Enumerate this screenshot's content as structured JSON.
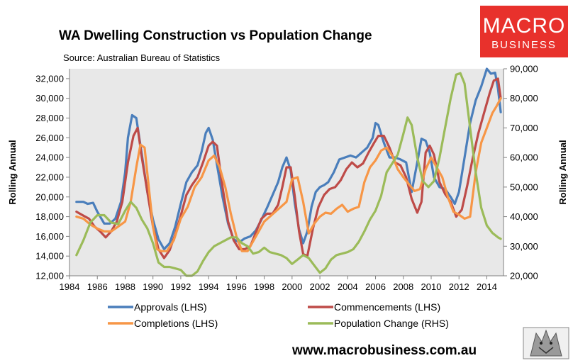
{
  "logo": {
    "line1": "MACRO",
    "line2": "BUSINESS",
    "color": "#e8312c"
  },
  "footer": {
    "url": "www.macrobusiness.com.au"
  },
  "chart_data": {
    "type": "line",
    "title": "WA Dwelling Construction vs Population Change",
    "subtitle": "Source: Australian Bureau of Statistics",
    "ylabel": "Rolling Annual",
    "y2label": "Rolling Annual",
    "xlim": [
      1984,
      2015.2
    ],
    "ylim": [
      12000,
      33000
    ],
    "y2lim": [
      20000,
      90000
    ],
    "x_ticks": [
      1984,
      1986,
      1988,
      1990,
      1992,
      1994,
      1996,
      1998,
      2000,
      2002,
      2004,
      2006,
      2008,
      2010,
      2012,
      2014
    ],
    "x_tick_labels": [
      "1984",
      "1986",
      "1988",
      "1990",
      "1992",
      "1994",
      "1996",
      "1998",
      "2000",
      "2002",
      "2004",
      "2006",
      "2008",
      "2010",
      "2012",
      "2014"
    ],
    "y_ticks": [
      12000,
      14000,
      16000,
      18000,
      20000,
      22000,
      24000,
      26000,
      28000,
      30000,
      32000
    ],
    "y_tick_labels": [
      "12,000",
      "14,000",
      "16,000",
      "18,000",
      "20,000",
      "22,000",
      "24,000",
      "26,000",
      "28,000",
      "30,000",
      "32,000"
    ],
    "y2_ticks": [
      20000,
      30000,
      40000,
      50000,
      60000,
      70000,
      80000,
      90000
    ],
    "y2_tick_labels": [
      "20,000",
      "30,000",
      "40,000",
      "50,000",
      "60,000",
      "70,000",
      "80,000",
      "90,000"
    ],
    "grid": false,
    "legend": "bottom",
    "series": [
      {
        "name": "Approvals (LHS)",
        "axis": "left",
        "color": "#4a7ebb",
        "x": [
          1984.5,
          1985.0,
          1985.3,
          1985.7,
          1986.0,
          1986.5,
          1986.9,
          1987.3,
          1987.7,
          1988.0,
          1988.2,
          1988.5,
          1988.8,
          1989.2,
          1989.6,
          1990.0,
          1990.4,
          1990.8,
          1991.2,
          1991.6,
          1992.0,
          1992.4,
          1992.8,
          1993.2,
          1993.5,
          1993.8,
          1994.0,
          1994.3,
          1994.6,
          1995.0,
          1995.4,
          1995.8,
          1996.2,
          1996.6,
          1997.0,
          1997.4,
          1997.8,
          1998.2,
          1998.6,
          1999.0,
          1999.3,
          1999.6,
          1999.9,
          2000.2,
          2000.5,
          2000.8,
          2001.1,
          2001.4,
          2001.7,
          2002.0,
          2002.3,
          2002.6,
          2003.0,
          2003.4,
          2003.8,
          2004.2,
          2004.6,
          2005.0,
          2005.4,
          2005.8,
          2006.0,
          2006.2,
          2006.6,
          2007.0,
          2007.4,
          2007.8,
          2008.2,
          2008.6,
          2009.0,
          2009.3,
          2009.6,
          2009.9,
          2010.2,
          2010.6,
          2011.0,
          2011.4,
          2011.7,
          2012.0,
          2012.4,
          2012.8,
          2013.2,
          2013.6,
          2014.0,
          2014.3,
          2014.6,
          2014.8,
          2015.0
        ],
        "values": [
          19500,
          19500,
          19300,
          19400,
          18500,
          17300,
          17300,
          17800,
          19500,
          22500,
          26000,
          28300,
          28000,
          24300,
          20500,
          17700,
          15700,
          14700,
          15300,
          17000,
          19300,
          21500,
          22500,
          23200,
          24600,
          26500,
          27000,
          25800,
          23300,
          20000,
          17300,
          15700,
          15400,
          15800,
          16000,
          16600,
          17700,
          18900,
          20200,
          21500,
          23000,
          24000,
          22700,
          19300,
          16700,
          15300,
          16500,
          19000,
          20500,
          21000,
          21200,
          21500,
          22500,
          23800,
          24000,
          24200,
          24000,
          24500,
          25000,
          26000,
          27500,
          27300,
          25500,
          24000,
          24000,
          23800,
          23500,
          20500,
          23500,
          25900,
          25700,
          24500,
          22000,
          21000,
          20800,
          20000,
          19300,
          20500,
          24000,
          27500,
          29800,
          31200,
          33000,
          32500,
          32600,
          31000,
          28600
        ]
      },
      {
        "name": "Commencements (LHS)",
        "axis": "left",
        "color": "#be4b48",
        "x": [
          1984.5,
          1985.0,
          1985.4,
          1985.8,
          1986.2,
          1986.6,
          1987.0,
          1987.4,
          1987.8,
          1988.2,
          1988.6,
          1988.9,
          1989.2,
          1989.6,
          1990.0,
          1990.4,
          1990.8,
          1991.2,
          1991.6,
          1992.0,
          1992.4,
          1992.8,
          1993.2,
          1993.6,
          1994.0,
          1994.3,
          1994.6,
          1995.0,
          1995.4,
          1995.8,
          1996.2,
          1996.6,
          1997.0,
          1997.4,
          1997.8,
          1998.2,
          1998.6,
          1999.0,
          1999.3,
          1999.6,
          1999.9,
          2000.2,
          2000.5,
          2000.8,
          2001.1,
          2001.5,
          2001.9,
          2002.3,
          2002.7,
          2003.1,
          2003.5,
          2003.9,
          2004.3,
          2004.7,
          2005.1,
          2005.5,
          2005.9,
          2006.2,
          2006.6,
          2007.0,
          2007.4,
          2007.8,
          2008.2,
          2008.6,
          2009.0,
          2009.3,
          2009.6,
          2009.9,
          2010.2,
          2010.6,
          2011.0,
          2011.4,
          2011.8,
          2012.2,
          2012.6,
          2013.0,
          2013.4,
          2013.8,
          2014.2,
          2014.5,
          2014.8,
          2015.0
        ],
        "values": [
          18500,
          18100,
          17800,
          17000,
          16500,
          15900,
          16500,
          17500,
          19500,
          23500,
          26200,
          27000,
          24000,
          20500,
          17000,
          14700,
          13800,
          14600,
          16200,
          18100,
          20200,
          21200,
          22000,
          23500,
          25200,
          25600,
          25200,
          21000,
          17500,
          15600,
          14700,
          14700,
          15000,
          16400,
          17800,
          18300,
          18300,
          19200,
          21000,
          23000,
          23000,
          20000,
          16500,
          14200,
          14000,
          16800,
          19000,
          20200,
          20800,
          21000,
          21700,
          22800,
          23500,
          23000,
          23400,
          24500,
          25500,
          26200,
          26200,
          25000,
          23500,
          23200,
          22000,
          19800,
          18400,
          19500,
          24500,
          25200,
          24300,
          21500,
          20300,
          19500,
          18000,
          18700,
          21200,
          24000,
          26500,
          28500,
          30500,
          31800,
          32000,
          30000
        ]
      },
      {
        "name": "Completions (LHS)",
        "axis": "left",
        "color": "#f79646",
        "x": [
          1984.5,
          1985.0,
          1985.5,
          1986.0,
          1986.5,
          1987.0,
          1987.5,
          1988.0,
          1988.4,
          1988.8,
          1989.1,
          1989.4,
          1989.7,
          1990.0,
          1990.3,
          1990.6,
          1991.0,
          1991.5,
          1992.0,
          1992.5,
          1993.0,
          1993.5,
          1994.0,
          1994.4,
          1994.8,
          1995.2,
          1995.6,
          1996.0,
          1996.4,
          1996.8,
          1997.2,
          1997.6,
          1998.0,
          1998.4,
          1998.8,
          1999.2,
          1999.6,
          2000.0,
          2000.4,
          2000.8,
          2001.2,
          2001.6,
          2002.0,
          2002.4,
          2002.8,
          2003.2,
          2003.6,
          2004.0,
          2004.4,
          2004.8,
          2005.2,
          2005.6,
          2006.0,
          2006.4,
          2006.8,
          2007.2,
          2007.6,
          2008.0,
          2008.4,
          2008.8,
          2009.2,
          2009.6,
          2010.0,
          2010.4,
          2010.8,
          2011.2,
          2011.6,
          2012.0,
          2012.4,
          2012.8,
          2013.2,
          2013.6,
          2014.0,
          2014.4,
          2014.7,
          2015.0
        ],
        "values": [
          18000,
          17800,
          17200,
          16800,
          16500,
          16500,
          17000,
          17500,
          19500,
          23000,
          25300,
          25000,
          21000,
          17000,
          14700,
          14500,
          14500,
          15600,
          17800,
          19000,
          21000,
          22000,
          23700,
          24200,
          23000,
          21000,
          18300,
          16000,
          14500,
          14500,
          15500,
          16500,
          17500,
          18000,
          18500,
          19000,
          19500,
          21800,
          22000,
          19500,
          16300,
          17300,
          18000,
          18400,
          18300,
          18800,
          19200,
          18500,
          18800,
          19000,
          21500,
          23000,
          23700,
          24700,
          25000,
          24200,
          22800,
          22000,
          21300,
          20600,
          20800,
          22800,
          24000,
          23000,
          22000,
          20000,
          18500,
          18200,
          17800,
          18000,
          22500,
          25500,
          27000,
          28500,
          29200,
          30000
        ]
      },
      {
        "name": "Population Change (RHS)",
        "axis": "right",
        "color": "#9bbb59",
        "x": [
          1984.5,
          1985.0,
          1985.5,
          1986.0,
          1986.5,
          1987.0,
          1987.5,
          1988.0,
          1988.4,
          1988.8,
          1989.2,
          1989.6,
          1990.0,
          1990.4,
          1990.8,
          1991.2,
          1991.6,
          1992.0,
          1992.4,
          1992.8,
          1993.2,
          1993.6,
          1994.0,
          1994.4,
          1994.8,
          1995.2,
          1995.6,
          1996.0,
          1996.4,
          1996.8,
          1997.2,
          1997.6,
          1998.0,
          1998.4,
          1998.8,
          1999.2,
          1999.6,
          2000.0,
          2000.4,
          2000.8,
          2001.2,
          2001.6,
          2002.0,
          2002.4,
          2002.8,
          2003.2,
          2003.6,
          2004.0,
          2004.4,
          2004.8,
          2005.2,
          2005.6,
          2006.0,
          2006.4,
          2006.8,
          2007.2,
          2007.6,
          2008.0,
          2008.3,
          2008.6,
          2009.0,
          2009.4,
          2009.8,
          2010.2,
          2010.6,
          2011.0,
          2011.4,
          2011.8,
          2012.1,
          2012.4,
          2012.8,
          2013.2,
          2013.6,
          2014.0,
          2014.4,
          2014.8,
          2015.0
        ],
        "values": [
          27000,
          32000,
          38000,
          40500,
          40500,
          38000,
          37500,
          42000,
          45000,
          43000,
          39000,
          36000,
          31000,
          24500,
          23000,
          23000,
          22500,
          22000,
          20000,
          20000,
          21500,
          25000,
          28000,
          30000,
          31000,
          32000,
          33000,
          33000,
          31000,
          30000,
          27500,
          28000,
          29500,
          28000,
          27500,
          27000,
          26000,
          24000,
          25500,
          27000,
          26000,
          23500,
          21000,
          22500,
          25500,
          27000,
          27500,
          28000,
          29000,
          31500,
          35000,
          39000,
          42000,
          47000,
          55000,
          58000,
          61000,
          68000,
          73500,
          71000,
          60000,
          52000,
          50000,
          52000,
          60000,
          70000,
          80000,
          88000,
          88500,
          85000,
          70000,
          55000,
          43000,
          37000,
          34500,
          33000,
          32500
        ]
      }
    ]
  }
}
